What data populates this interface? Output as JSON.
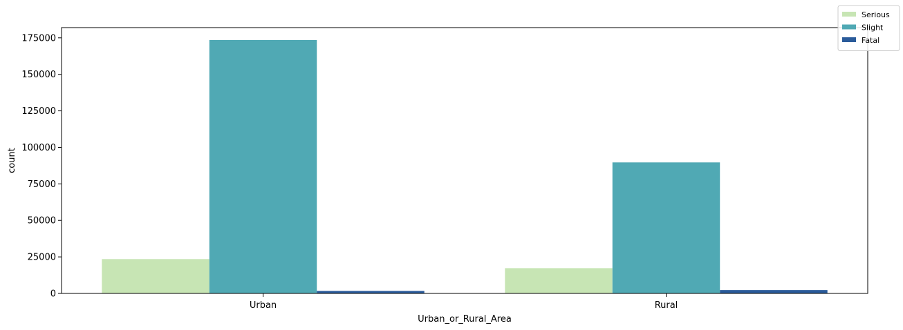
{
  "chart_data": {
    "type": "bar",
    "title": "",
    "xlabel": "Urban_or_Rural_Area",
    "ylabel": "count",
    "categories": [
      "Urban",
      "Rural"
    ],
    "series": [
      {
        "name": "Serious",
        "color": "#c7e5b4",
        "values": [
          23500,
          17300
        ]
      },
      {
        "name": "Slight",
        "color": "#50a9b4",
        "values": [
          173500,
          89700
        ]
      },
      {
        "name": "Fatal",
        "color": "#2a5b9a",
        "values": [
          1700,
          2300
        ]
      }
    ],
    "ylim": [
      0,
      182000
    ],
    "yticks": [
      0,
      25000,
      50000,
      75000,
      100000,
      125000,
      150000,
      175000
    ],
    "ytick_labels": [
      "0",
      "25000",
      "50000",
      "75000",
      "100000",
      "125000",
      "150000",
      "175000"
    ],
    "grid": false,
    "legend_position": "top-right"
  }
}
